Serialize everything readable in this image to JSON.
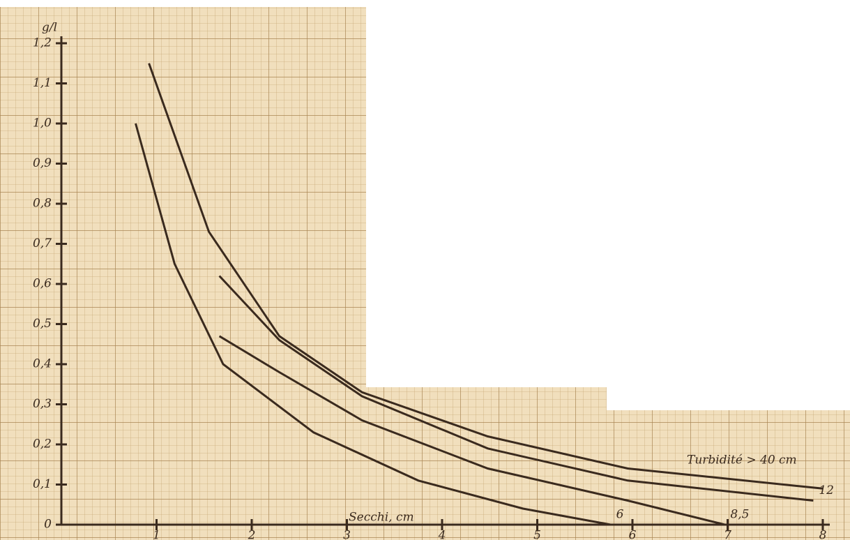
{
  "chart_data": {
    "type": "line",
    "y_label": "g/l",
    "x_label": "Secchi, cm",
    "annotation": "Turbidité > 40 cm",
    "xlim": [
      0,
      8
    ],
    "ylim": [
      0,
      1.2
    ],
    "xticks": [
      1,
      2,
      3,
      4,
      5,
      6,
      7,
      8
    ],
    "yticks": [
      {
        "value": 0,
        "label": "0"
      },
      {
        "value": 0.1,
        "label": "0,1"
      },
      {
        "value": 0.2,
        "label": "0,2"
      },
      {
        "value": 0.3,
        "label": "0,3"
      },
      {
        "value": 0.4,
        "label": "0,4"
      },
      {
        "value": 0.5,
        "label": "0,5"
      },
      {
        "value": 0.6,
        "label": "0,6"
      },
      {
        "value": 0.7,
        "label": "0,7"
      },
      {
        "value": 0.8,
        "label": "0,8"
      },
      {
        "value": 0.9,
        "label": "0,9"
      },
      {
        "value": 1.0,
        "label": "1,0"
      },
      {
        "value": 1.1,
        "label": "1,1"
      },
      {
        "value": 1.2,
        "label": "1,2"
      }
    ],
    "series": [
      {
        "color": "#3a2a1e",
        "x": [
          0.92,
          1.55,
          2.29,
          3.16,
          4.48,
          5.95,
          8.0
        ],
        "values": [
          1.15,
          0.73,
          0.47,
          0.33,
          0.22,
          0.14,
          0.09
        ]
      },
      {
        "name": "12",
        "color": "#3a2a1e",
        "x": [
          1.66,
          2.29,
          3.16,
          4.48,
          5.95,
          7.9
        ],
        "values": [
          0.62,
          0.46,
          0.32,
          0.19,
          0.11,
          0.06
        ]
      },
      {
        "name": "8,5",
        "color": "#3a2a1e",
        "x": [
          1.66,
          2.29,
          3.16,
          4.48,
          5.95,
          6.97
        ],
        "values": [
          0.47,
          0.38,
          0.26,
          0.14,
          0.06,
          0
        ]
      },
      {
        "name": "6",
        "color": "#3a2a1e",
        "x": [
          0.78,
          1.19,
          1.7,
          2.65,
          3.75,
          4.85,
          5.77
        ],
        "values": [
          1.0,
          0.65,
          0.4,
          0.23,
          0.11,
          0.04,
          0
        ]
      }
    ]
  }
}
